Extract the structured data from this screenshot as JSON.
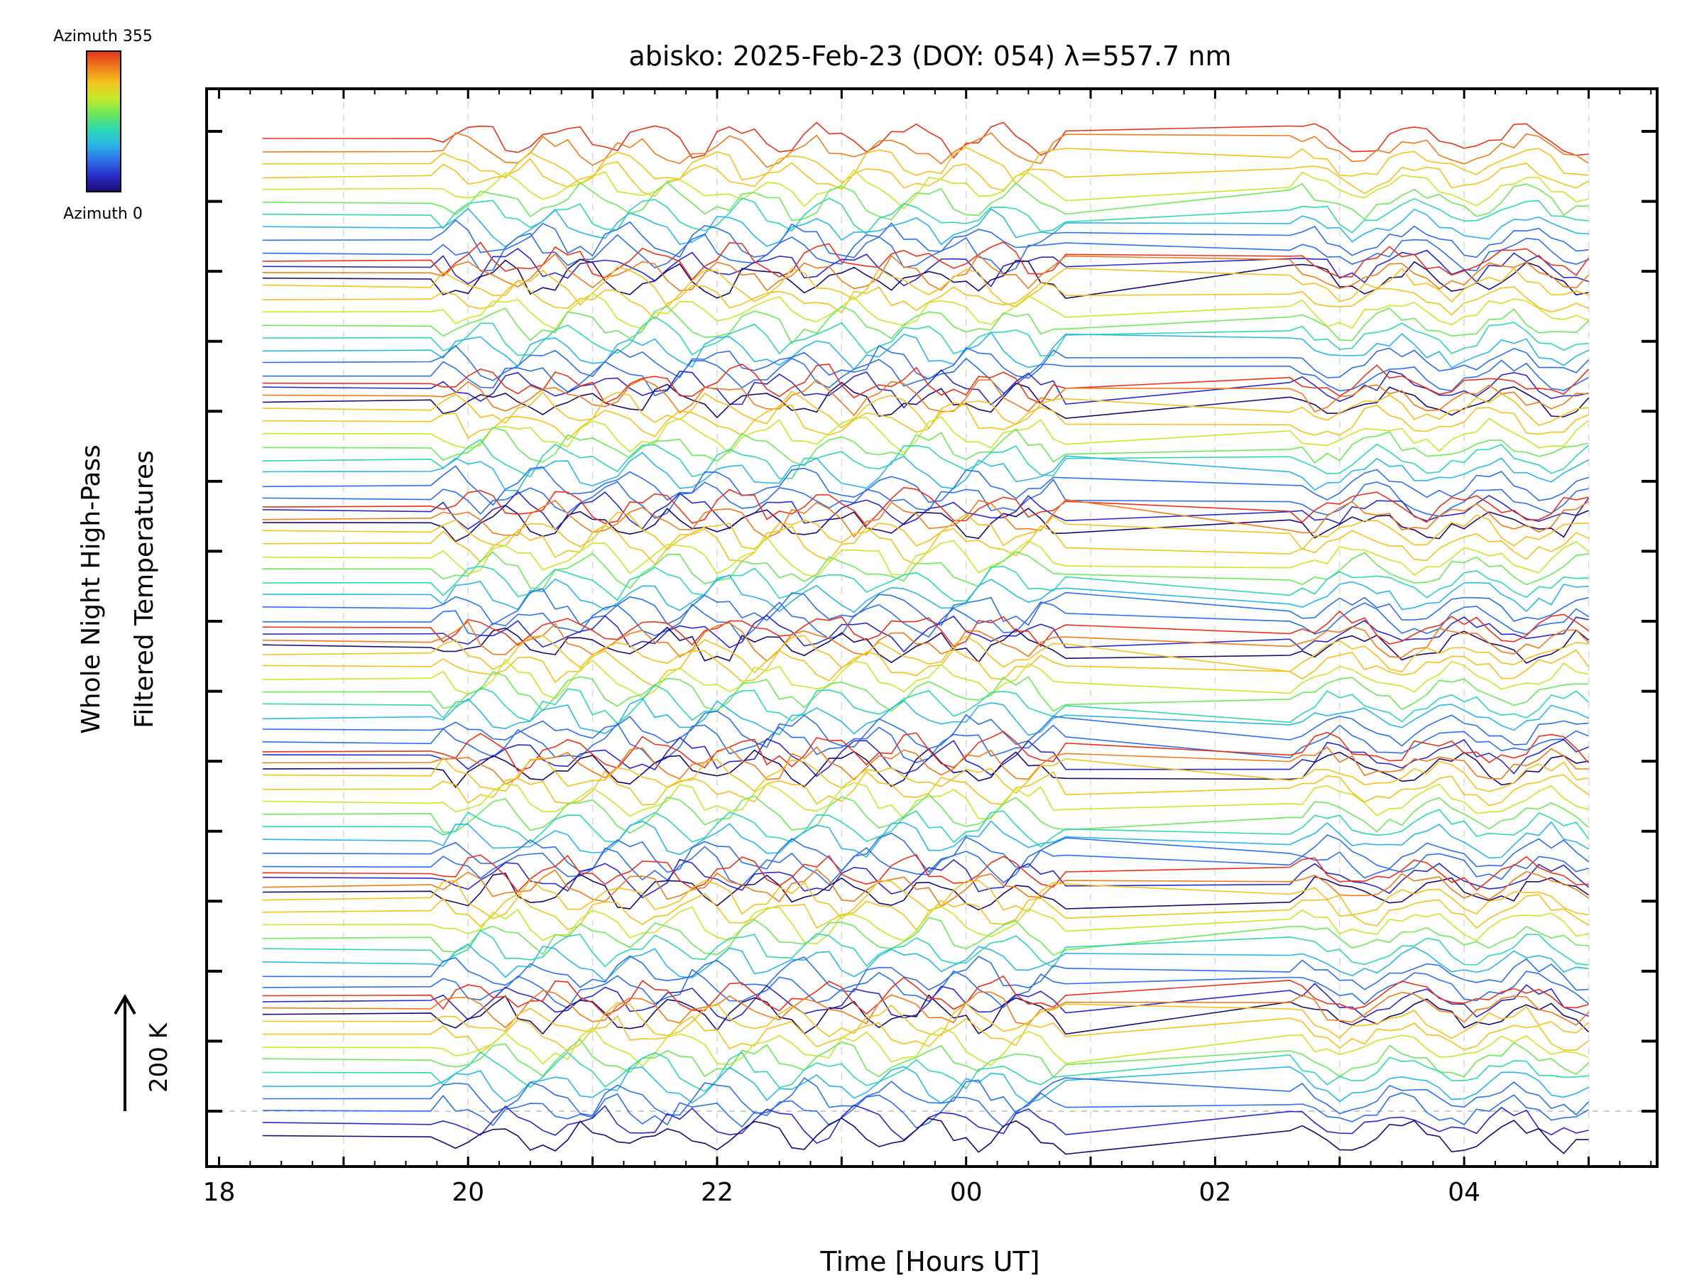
{
  "chart_data": {
    "type": "line",
    "title": "abisko: 2025-Feb-23 (DOY: 054) λ=557.7 nm",
    "xlabel": "Time [Hours UT]",
    "ylabel_line1": "Whole Night High-Pass",
    "ylabel_line2": "Filtered Temperatures",
    "scale_label": "200 K",
    "colorbar": {
      "top_label": "Azimuth 355",
      "bottom_label": "Azimuth 0",
      "colors": [
        "#e8321e",
        "#f07b1c",
        "#f3c21e",
        "#c8e82a",
        "#6ee85a",
        "#2fd8b0",
        "#2ab6e8",
        "#2f6fe8",
        "#2a2ac8",
        "#1a0a6e"
      ]
    },
    "x_tick_labels": [
      "18",
      "20",
      "22",
      "00",
      "02",
      "04"
    ],
    "x_tick_values_hours": [
      18,
      20,
      22,
      24,
      26,
      28
    ],
    "xlim_hours": [
      17.9,
      29.55
    ],
    "y_offset_ticks": 15,
    "grid": true,
    "series_groups": 8,
    "series_per_group": 12,
    "time_coverage_hours": [
      18.35,
      29.05
    ],
    "observing_gap_hours": [
      24.85,
      26.6
    ],
    "note_values_estimated": true
  }
}
